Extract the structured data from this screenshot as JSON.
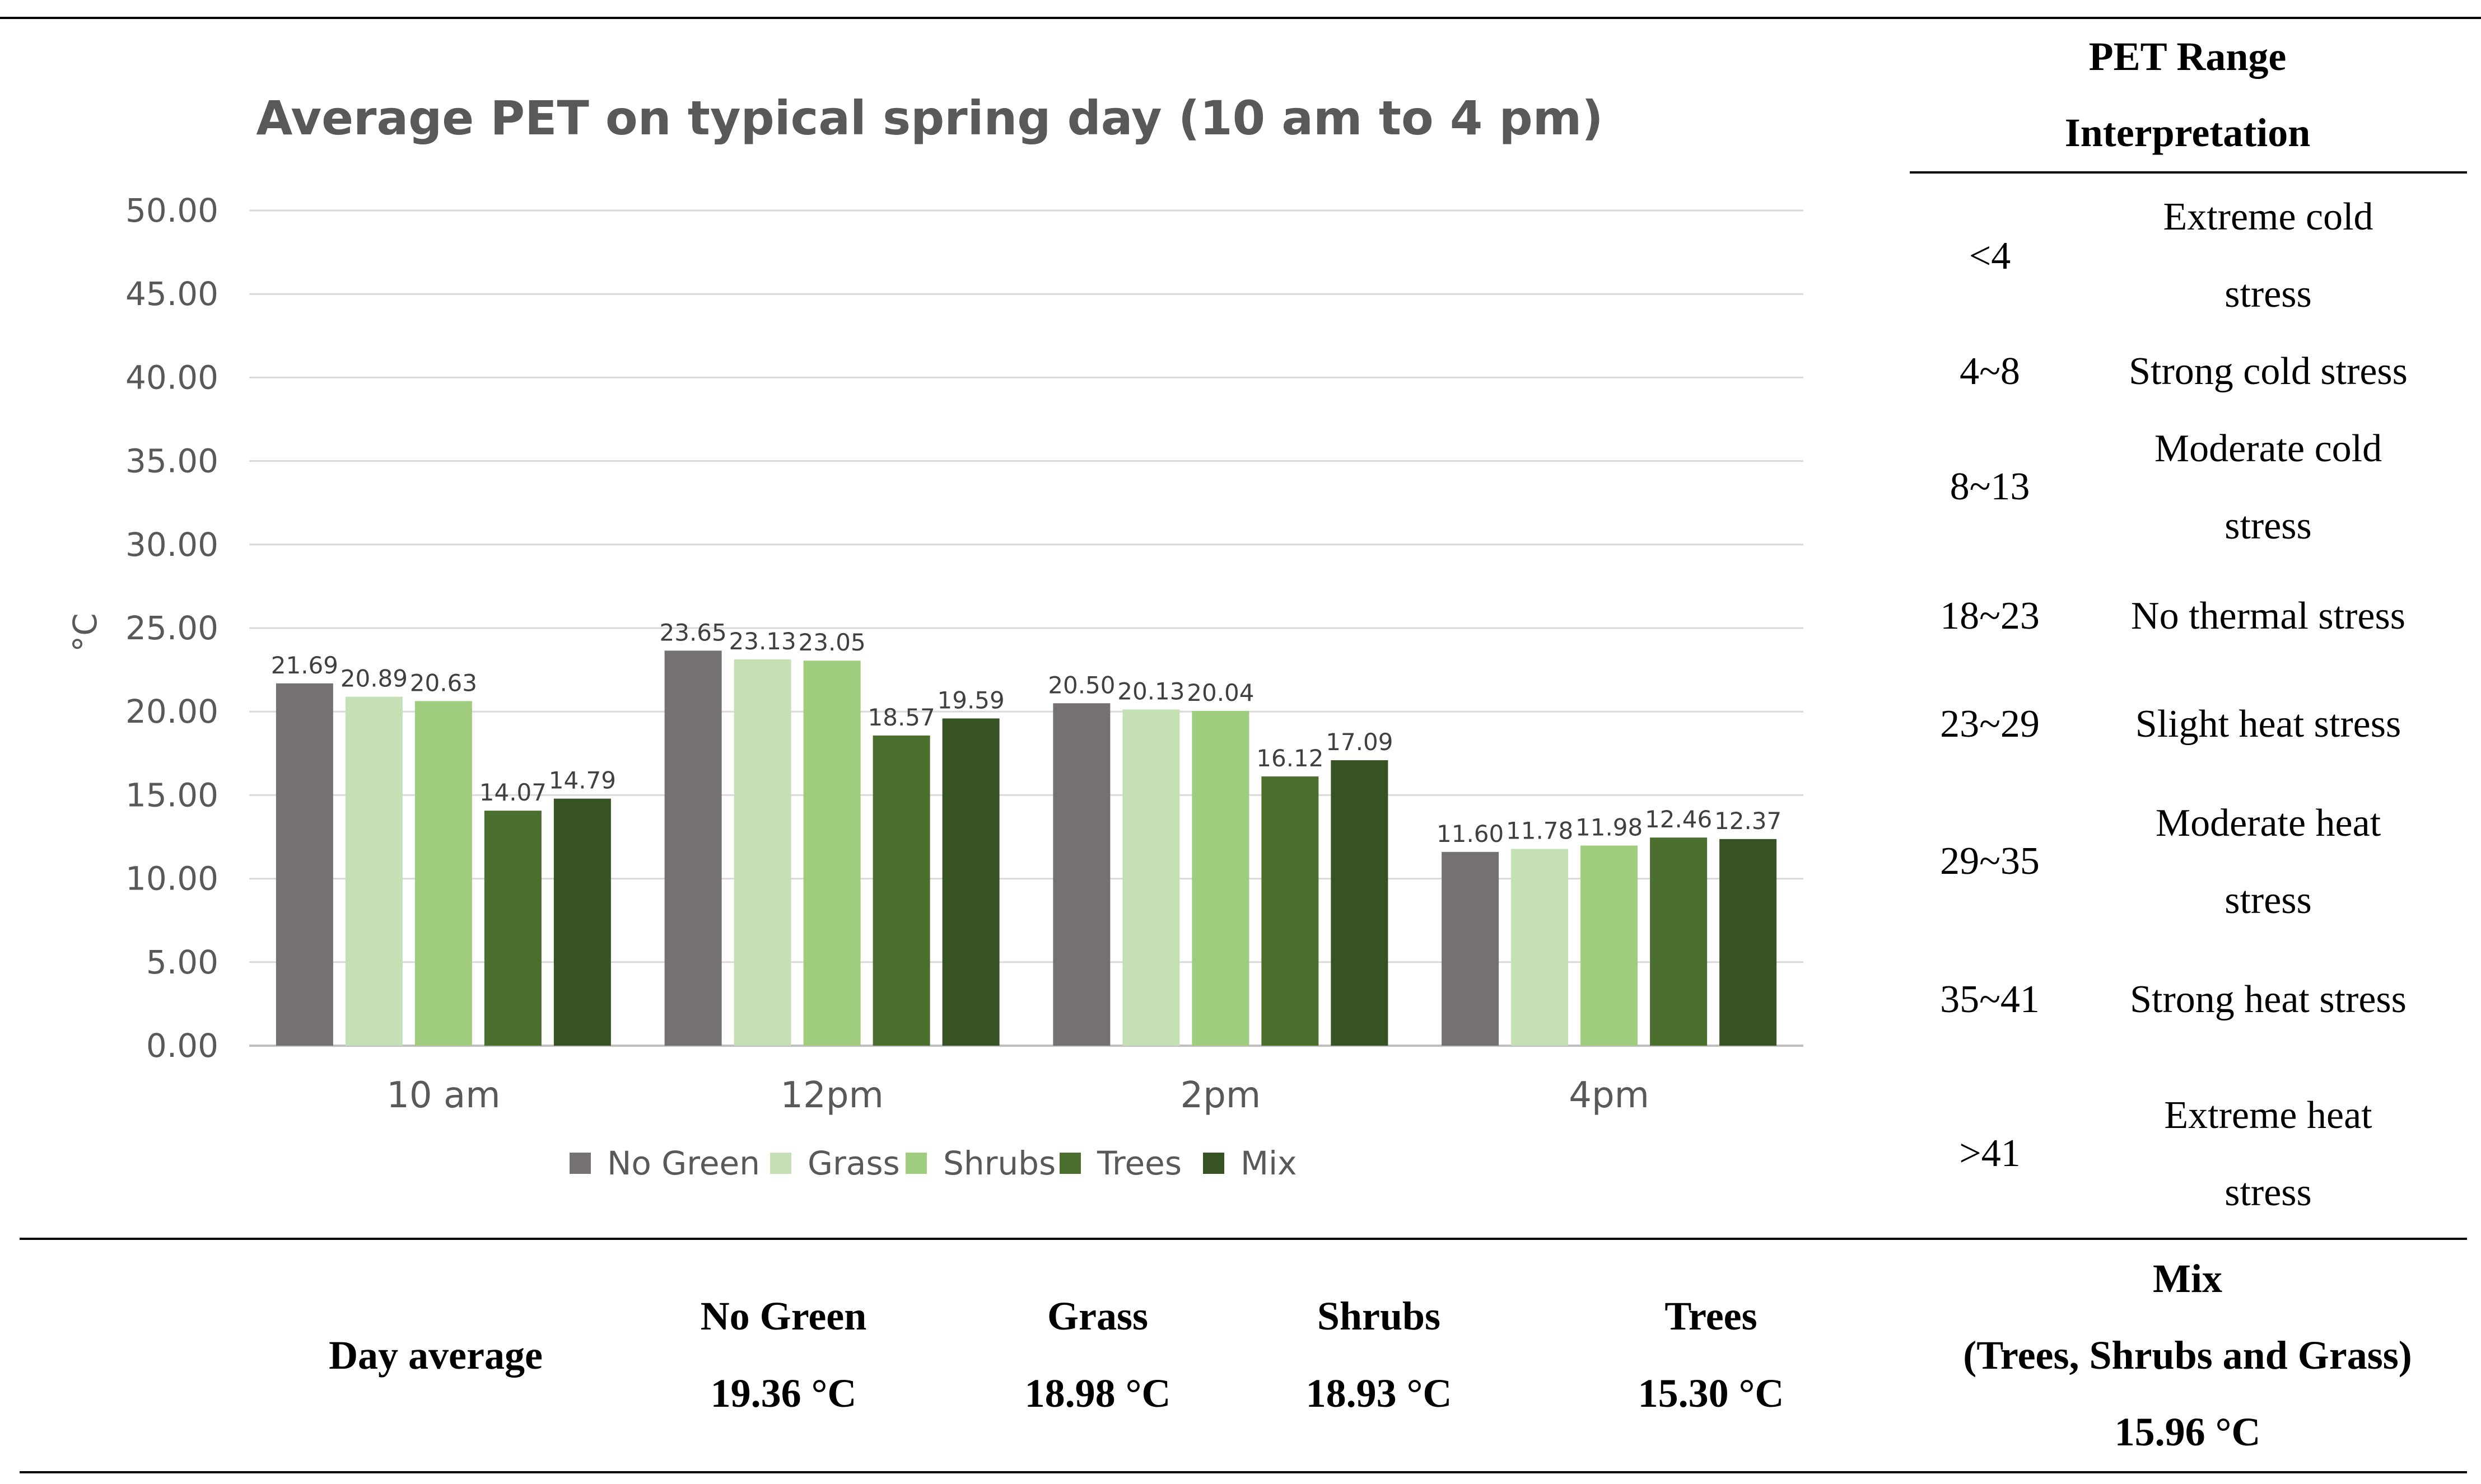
{
  "chart_data": {
    "type": "bar",
    "title": "Average  PET on typical spring day (10 am to 4 pm)",
    "ylabel": "°C",
    "xlabel": "",
    "ylim": [
      0,
      50
    ],
    "yticks": [
      "0.00",
      "5.00",
      "10.00",
      "15.00",
      "20.00",
      "25.00",
      "30.00",
      "35.00",
      "40.00",
      "45.00",
      "50.00"
    ],
    "categories": [
      "10 am",
      "12pm",
      "2pm",
      "4pm"
    ],
    "series": [
      {
        "name": "No Green",
        "color": "#767171",
        "values": [
          21.69,
          23.65,
          20.5,
          11.6
        ],
        "labels": [
          "21.69",
          "23.65",
          "20.50",
          "11.60"
        ]
      },
      {
        "name": "Grass",
        "color": "#c5e0b4",
        "values": [
          20.89,
          23.13,
          20.13,
          11.78
        ],
        "labels": [
          "20.89",
          "23.13",
          "20.13",
          "11.78"
        ]
      },
      {
        "name": "Shrubs",
        "color": "#a0cc7e",
        "values": [
          20.63,
          23.05,
          20.04,
          11.98
        ],
        "labels": [
          "20.63",
          "23.05",
          "20.04",
          "11.98"
        ]
      },
      {
        "name": "Trees",
        "color": "#4a6f2f",
        "values": [
          14.07,
          18.57,
          16.12,
          12.46
        ],
        "labels": [
          "14.07",
          "18.57",
          "16.12",
          "12.46"
        ]
      },
      {
        "name": "Mix",
        "color": "#375324",
        "values": [
          14.79,
          19.59,
          17.09,
          12.37
        ],
        "labels": [
          "14.79",
          "19.59",
          "17.09",
          "12.37"
        ]
      }
    ],
    "grid": true,
    "legend": "bottom"
  },
  "pet_table": {
    "header_line1": "PET Range",
    "header_line2": "Interpretation",
    "rows": [
      {
        "range": "<4",
        "line1": "Extreme cold",
        "line2": "stress"
      },
      {
        "range": "4~8",
        "line1": "Strong cold stress",
        "line2": ""
      },
      {
        "range": "8~13",
        "line1": "Moderate cold",
        "line2": "stress"
      },
      {
        "range": "18~23",
        "line1": "No thermal stress",
        "line2": ""
      },
      {
        "range": "23~29",
        "line1": "Slight heat stress",
        "line2": ""
      },
      {
        "range": "29~35",
        "line1": "Moderate heat",
        "line2": "stress"
      },
      {
        "range": "35~41",
        "line1": "Strong heat stress",
        "line2": ""
      },
      {
        "range": ">41",
        "line1": "Extreme heat",
        "line2": "stress"
      }
    ]
  },
  "day_average": {
    "label": "Day average",
    "no_green": {
      "name": "No Green",
      "value": "19.36 °C"
    },
    "grass": {
      "name": "Grass",
      "value": "18.98 °C"
    },
    "shrubs": {
      "name": "Shrubs",
      "value": "18.93 °C"
    },
    "trees": {
      "name": "Trees",
      "value": "15.30 °C"
    },
    "mix": {
      "name": "Mix",
      "sub": "(Trees, Shrubs and Grass)",
      "value": "15.96 °C"
    }
  }
}
